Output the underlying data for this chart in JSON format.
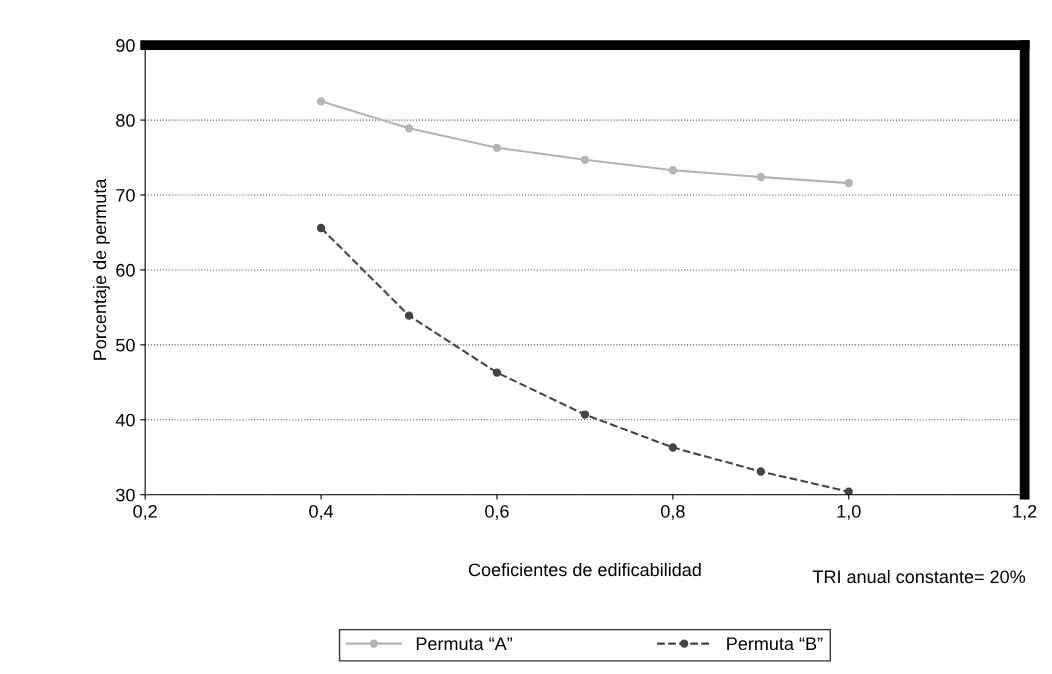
{
  "chart_data": {
    "type": "line",
    "xlabel": "Coeficientes de edificabilidad",
    "ylabel": "Porcentaje de permuta",
    "x": [
      0.4,
      0.5,
      0.6,
      0.7,
      0.8,
      0.9,
      1.0
    ],
    "series": [
      {
        "name": "Permuta “A”",
        "color": "#b4b4b4",
        "values": [
          82.5,
          78.9,
          76.3,
          74.7,
          73.3,
          72.4,
          71.6
        ],
        "line_style": "solid",
        "marker": "circle"
      },
      {
        "name": "Permuta “B”",
        "color": "#444444",
        "values": [
          65.6,
          53.9,
          46.3,
          40.7,
          36.3,
          33.1,
          30.4
        ],
        "line_style": "dashed",
        "marker": "circle"
      }
    ],
    "xlim": [
      0.2,
      1.2
    ],
    "xticks": [
      {
        "value": 0.2,
        "label": "0,2"
      },
      {
        "value": 0.4,
        "label": "0,4"
      },
      {
        "value": 0.6,
        "label": "0,6"
      },
      {
        "value": 0.8,
        "label": "0,8"
      },
      {
        "value": 1.0,
        "label": "1,0"
      },
      {
        "value": 1.2,
        "label": "1,2"
      }
    ],
    "ylim": [
      30,
      90
    ],
    "yticks": [
      30,
      40,
      50,
      60,
      70,
      80,
      90
    ],
    "grid": "y",
    "legend": "bottom",
    "annotations": [
      "TRI anual constante= 20%"
    ]
  }
}
